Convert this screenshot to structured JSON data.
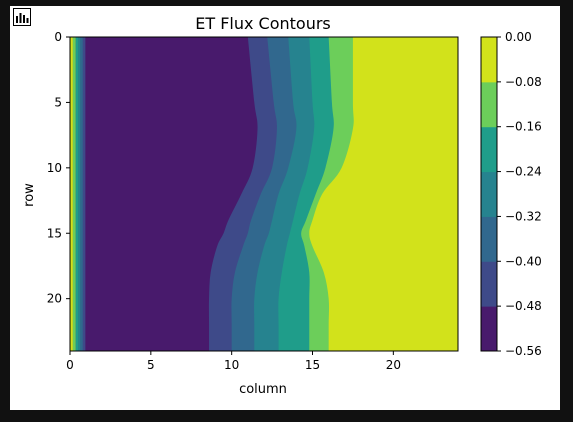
{
  "toolbar": {
    "icon": "bar-chart-icon"
  },
  "chart_data": {
    "type": "heatmap",
    "subtype": "filled-contour",
    "title": "ET Flux Contours",
    "xlabel": "column",
    "ylabel": "row",
    "xlim": [
      0,
      24
    ],
    "ylim": [
      24,
      0
    ],
    "x_ticks": [
      0,
      5,
      10,
      15,
      20
    ],
    "y_ticks": [
      0,
      5,
      10,
      15,
      20
    ],
    "colorbar": {
      "ticks": [
        "0.00",
        "−0.08",
        "−0.16",
        "−0.24",
        "−0.32",
        "−0.40",
        "−0.48",
        "−0.56"
      ],
      "levels": [
        -0.56,
        -0.48,
        -0.4,
        -0.32,
        -0.24,
        -0.16,
        -0.08,
        0.0
      ],
      "colors": [
        "#481a6c",
        "#3e4a89",
        "#31688e",
        "#26838f",
        "#1f9d8a",
        "#6cce5a",
        "#d2e21b"
      ]
    },
    "contour_boundaries_column_by_row": {
      "rows": [
        0,
        5,
        7,
        10,
        12,
        14,
        15,
        16,
        18,
        20,
        22,
        24
      ],
      "boundaries": [
        [
          11.0,
          11.4,
          11.6,
          11.3,
          10.6,
          9.8,
          9.5,
          9.1,
          8.7,
          8.6,
          8.6,
          8.6
        ],
        [
          12.2,
          12.6,
          12.8,
          12.5,
          11.8,
          11.2,
          11.0,
          10.7,
          10.2,
          10.0,
          10.0,
          10.0
        ],
        [
          13.5,
          13.8,
          14.0,
          13.5,
          12.9,
          12.5,
          12.3,
          12.0,
          11.6,
          11.4,
          11.4,
          11.4
        ],
        [
          14.8,
          15.0,
          15.1,
          14.7,
          14.2,
          13.8,
          13.6,
          13.4,
          13.1,
          12.9,
          12.9,
          12.9
        ],
        [
          16.0,
          16.2,
          16.3,
          15.8,
          15.2,
          14.6,
          14.3,
          14.5,
          14.8,
          14.8,
          14.8,
          14.8
        ],
        [
          17.5,
          17.5,
          17.5,
          16.8,
          15.6,
          15.0,
          14.8,
          15.0,
          15.7,
          16.0,
          16.0,
          16.0
        ]
      ]
    }
  }
}
